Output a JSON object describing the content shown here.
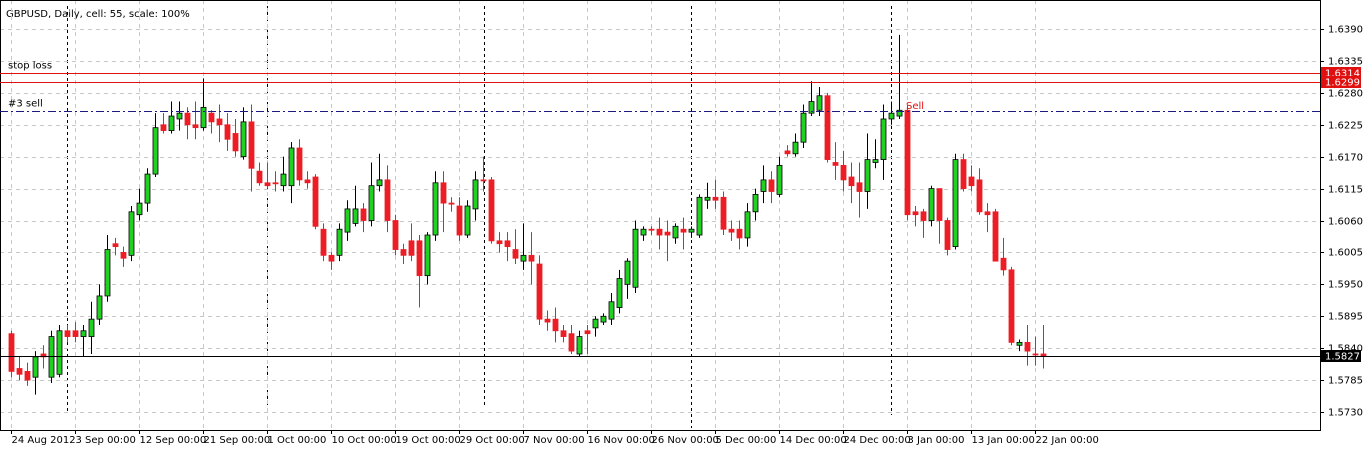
{
  "chart_data": {
    "type": "candlestick",
    "title": "GBPUSD, Daily, cell: 55, scale: 100%",
    "categories": [
      "24 Aug 2012",
      null,
      null,
      null,
      null,
      null,
      null,
      null,
      "3 Sep 00:00",
      null,
      null,
      null,
      null,
      null,
      null,
      null,
      "12 Sep 00:00",
      null,
      null,
      null,
      null,
      null,
      null,
      null,
      "21 Sep 00:00",
      null,
      null,
      null,
      null,
      null,
      null,
      null,
      "1 Oct 00:00",
      null,
      null,
      null,
      null,
      null,
      null,
      null,
      "10 Oct 00:00",
      null,
      null,
      null,
      null,
      null,
      null,
      null,
      "19 Oct 00:00",
      null,
      null,
      null,
      null,
      null,
      null,
      null,
      "29 Oct 00:00",
      null,
      null,
      null,
      null,
      null,
      null,
      null,
      "7 Nov 00:00",
      null,
      null,
      null,
      null,
      null,
      null,
      null,
      "16 Nov 00:00",
      null,
      null,
      null,
      null,
      null,
      null,
      null,
      "26 Nov 00:00",
      null,
      null,
      null,
      null,
      null,
      null,
      null,
      "5 Dec 00:00",
      null,
      null,
      null,
      null,
      null,
      null,
      null,
      "14 Dec 00:00",
      null,
      null,
      null,
      null,
      null,
      null,
      null,
      "24 Dec 00:00",
      null,
      null,
      null,
      null,
      null,
      null,
      null,
      "3 Jan 00:00",
      null,
      null,
      null,
      null,
      null,
      null,
      null,
      "13 Jan 00:00",
      null,
      null,
      null,
      null,
      null,
      null,
      null,
      "22 Jan 00:00",
      null
    ],
    "open": [
      1.5865,
      1.5805,
      1.58,
      1.579,
      1.583,
      1.579,
      1.5795,
      1.587,
      1.587,
      1.586,
      1.586,
      1.589,
      1.593,
      1.602,
      1.6005,
      1.6,
      1.607,
      1.609,
      1.614,
      1.6225,
      1.6215,
      1.6235,
      1.6245,
      1.6225,
      1.622,
      1.6245,
      1.6235,
      1.6225,
      1.621,
      1.617,
      1.623,
      1.6145,
      1.6125,
      1.6125,
      1.612,
      1.612,
      1.6185,
      1.613,
      1.6135,
      1.6045,
      1.6,
      1.6,
      1.604,
      1.6055,
      1.608,
      1.606,
      1.612,
      1.613,
      1.606,
      1.601,
      1.6025,
      1.6025,
      1.5965,
      1.6035,
      1.6125,
      1.609,
      1.6085,
      1.6035,
      1.608,
      1.613,
      1.613,
      1.6025,
      1.6025,
      1.601,
      1.599,
      1.6,
      1.5985,
      1.589,
      1.589,
      1.587,
      1.5865,
      1.583,
      1.587,
      1.5875,
      1.5885,
      1.589,
      1.591,
      1.595,
      1.5945,
      1.6035,
      1.6045,
      1.6045,
      1.604,
      1.603,
      1.6045,
      1.604,
      1.6035,
      1.6095,
      1.61,
      1.61,
      1.6045,
      1.6045,
      1.603,
      1.6075,
      1.611,
      1.613,
      1.6105,
      1.618,
      1.6175,
      1.6195,
      1.6245,
      1.625,
      1.6275,
      1.616,
      1.6155,
      1.6135,
      1.6125,
      1.611,
      1.616,
      1.6165,
      1.6235,
      1.624,
      1.625,
      1.6075,
      1.6075,
      1.606,
      1.6115,
      1.606,
      1.6015,
      1.6165,
      1.6135,
      1.613,
      1.6075,
      1.6075,
      1.5995,
      1.5975,
      1.5845,
      1.585,
      1.583,
      1.583
    ],
    "high": [
      1.587,
      1.5825,
      1.5815,
      1.5835,
      1.5845,
      1.587,
      1.588,
      1.588,
      1.5885,
      1.588,
      1.592,
      1.595,
      1.6035,
      1.603,
      1.6015,
      1.6085,
      1.6115,
      1.615,
      1.6245,
      1.6245,
      1.6265,
      1.6265,
      1.6255,
      1.6265,
      1.6305,
      1.625,
      1.626,
      1.6245,
      1.6235,
      1.6255,
      1.626,
      1.616,
      1.616,
      1.6145,
      1.617,
      1.6195,
      1.62,
      1.6145,
      1.614,
      1.6055,
      1.6005,
      1.6055,
      1.6095,
      1.612,
      1.609,
      1.616,
      1.6175,
      1.6155,
      1.607,
      1.602,
      1.6055,
      1.6035,
      1.604,
      1.6145,
      1.6145,
      1.61,
      1.61,
      1.6095,
      1.6145,
      1.617,
      1.6135,
      1.604,
      1.604,
      1.6045,
      1.6055,
      1.604,
      1.6,
      1.5905,
      1.591,
      1.588,
      1.588,
      1.587,
      1.588,
      1.5895,
      1.59,
      1.5935,
      1.5975,
      1.5995,
      1.606,
      1.605,
      1.605,
      1.6065,
      1.606,
      1.6055,
      1.6065,
      1.605,
      1.6105,
      1.6125,
      1.613,
      1.611,
      1.606,
      1.606,
      1.609,
      1.6115,
      1.6155,
      1.6145,
      1.617,
      1.619,
      1.621,
      1.626,
      1.63,
      1.629,
      1.628,
      1.6195,
      1.618,
      1.616,
      1.616,
      1.621,
      1.62,
      1.626,
      1.6265,
      1.638,
      1.626,
      1.6085,
      1.608,
      1.612,
      1.6115,
      1.6065,
      1.6175,
      1.6175,
      1.6155,
      1.615,
      1.609,
      1.608,
      1.603,
      1.598,
      1.5855,
      1.588,
      1.586,
      1.588
    ],
    "low": [
      1.579,
      1.5785,
      1.5775,
      1.576,
      1.5805,
      1.578,
      1.579,
      1.585,
      1.585,
      1.5825,
      1.583,
      1.588,
      1.592,
      1.6,
      1.598,
      1.599,
      1.606,
      1.6075,
      1.6135,
      1.621,
      1.621,
      1.6215,
      1.62,
      1.62,
      1.6215,
      1.621,
      1.6195,
      1.618,
      1.617,
      1.6165,
      1.611,
      1.612,
      1.6115,
      1.611,
      1.611,
      1.609,
      1.612,
      1.6115,
      1.6045,
      1.599,
      1.5975,
      1.599,
      1.6025,
      1.605,
      1.604,
      1.605,
      1.611,
      1.604,
      1.6,
      1.5985,
      1.599,
      1.591,
      1.595,
      1.6025,
      1.604,
      1.6075,
      1.6025,
      1.603,
      1.606,
      1.611,
      1.602,
      1.6005,
      1.599,
      1.5985,
      1.5975,
      1.595,
      1.588,
      1.587,
      1.585,
      1.585,
      1.583,
      1.5825,
      1.583,
      1.586,
      1.588,
      1.588,
      1.59,
      1.5925,
      1.5935,
      1.6025,
      1.6035,
      1.601,
      1.599,
      1.602,
      1.601,
      1.603,
      1.603,
      1.608,
      1.608,
      1.6035,
      1.6025,
      1.601,
      1.6015,
      1.606,
      1.609,
      1.609,
      1.61,
      1.617,
      1.617,
      1.6185,
      1.624,
      1.624,
      1.616,
      1.613,
      1.611,
      1.609,
      1.6065,
      1.608,
      1.615,
      1.613,
      1.6225,
      1.6235,
      1.606,
      1.605,
      1.603,
      1.605,
      1.602,
      1.6,
      1.601,
      1.611,
      1.611,
      1.607,
      1.604,
      1.599,
      1.5965,
      1.5845,
      1.5835,
      1.581,
      1.581,
      1.5805
    ],
    "close": [
      1.58,
      1.5795,
      1.5785,
      1.5825,
      1.5825,
      1.586,
      1.587,
      1.586,
      1.586,
      1.587,
      1.589,
      1.593,
      1.601,
      1.6015,
      1.5995,
      1.6075,
      1.609,
      1.614,
      1.622,
      1.6215,
      1.624,
      1.6245,
      1.6225,
      1.622,
      1.6255,
      1.623,
      1.6225,
      1.62,
      1.618,
      1.623,
      1.615,
      1.6125,
      1.612,
      1.6124,
      1.614,
      1.6185,
      1.613,
      1.6125,
      1.605,
      1.6,
      1.599,
      1.6045,
      1.608,
      1.608,
      1.606,
      1.612,
      1.613,
      1.606,
      1.601,
      1.6,
      1.6,
      1.5965,
      1.6035,
      1.6125,
      1.609,
      1.6089,
      1.6035,
      1.6085,
      1.613,
      1.6129,
      1.6025,
      1.602,
      1.6015,
      1.5995,
      1.6,
      1.599,
      1.589,
      1.5885,
      1.587,
      1.586,
      1.5835,
      1.586,
      1.5865,
      1.589,
      1.5895,
      1.592,
      1.596,
      1.599,
      1.6045,
      1.6045,
      1.6044,
      1.6035,
      1.6035,
      1.605,
      1.604,
      1.6045,
      1.61,
      1.61,
      1.6095,
      1.6045,
      1.604,
      1.603,
      1.6075,
      1.6105,
      1.613,
      1.611,
      1.6155,
      1.6175,
      1.6195,
      1.6245,
      1.6265,
      1.6275,
      1.6165,
      1.6155,
      1.613,
      1.612,
      1.611,
      1.6165,
      1.6165,
      1.6235,
      1.6245,
      1.625,
      1.607,
      1.607,
      1.606,
      1.6115,
      1.606,
      1.601,
      1.6165,
      1.6115,
      1.612,
      1.6075,
      1.607,
      1.599,
      1.5975,
      1.585,
      1.585,
      1.5835,
      1.5829,
      1.5827
    ],
    "up_color": "#22d022",
    "down_color": "#ee1c24",
    "ylim": [
      1.5699,
      1.644
    ],
    "yticks": [
      {
        "value": 1.573,
        "label": "1.5730"
      },
      1.5785,
      {
        "value": 1.584,
        "label": "1.5840"
      },
      1.5895,
      {
        "value": 1.595,
        "label": "1.5950"
      },
      1.6005,
      {
        "value": 1.606,
        "label": "1.6060"
      },
      1.6115,
      {
        "value": 1.617,
        "label": "1.6170"
      },
      1.6225,
      {
        "value": 1.628,
        "label": "1.6280"
      },
      1.6335,
      {
        "value": 1.639,
        "label": "1.6390"
      }
    ],
    "grid": true,
    "levels": [
      {
        "name": "stop loss",
        "value": 1.6314,
        "color": "#e01010",
        "style": "solid",
        "box": true
      },
      {
        "value": 1.6299,
        "color": "#e01010",
        "style": "solid",
        "box": true
      },
      {
        "name": "#3 sell",
        "value": 1.6249,
        "color": "#1a1a80",
        "style": "dashdot",
        "box": false
      },
      {
        "value": 1.5827,
        "color": "#000000",
        "style": "solid",
        "box": true
      }
    ],
    "annotation": {
      "text": "Sell",
      "color": "#e01010"
    }
  }
}
